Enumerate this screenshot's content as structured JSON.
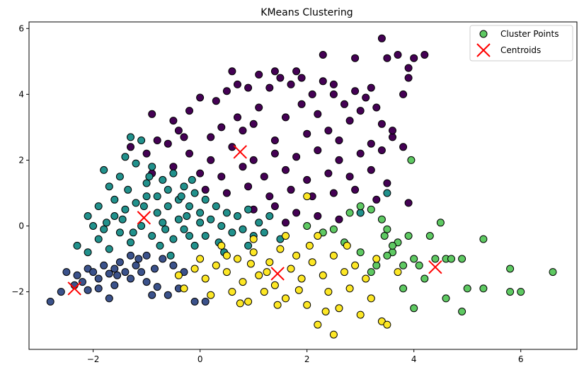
{
  "chart_data": {
    "type": "scatter",
    "title": "KMeans Clustering",
    "xlabel": "",
    "ylabel": "",
    "xlim": [
      -3.2,
      7.05
    ],
    "ylim": [
      -3.75,
      6.2
    ],
    "x_ticks": [
      -2,
      0,
      2,
      4,
      6
    ],
    "y_ticks": [
      -2,
      0,
      2,
      4,
      6
    ],
    "grid": false,
    "legend": {
      "placement": "top-right",
      "entries": [
        {
          "label": "Cluster Points",
          "marker": "circle",
          "color": "#5ec962"
        },
        {
          "label": "Centroids",
          "marker": "x",
          "color": "#ff0000"
        }
      ]
    },
    "cluster_colors": [
      "#440154",
      "#3b528b",
      "#21918c",
      "#5ec962",
      "#fde725"
    ],
    "series": [
      {
        "cluster": 0,
        "color": "#440154",
        "points": [
          [
            -0.9,
            3.4
          ],
          [
            -0.5,
            3.2
          ],
          [
            -0.2,
            3.5
          ],
          [
            0.0,
            3.9
          ],
          [
            0.3,
            3.8
          ],
          [
            0.5,
            4.1
          ],
          [
            0.7,
            4.3
          ],
          [
            0.9,
            4.2
          ],
          [
            1.1,
            4.6
          ],
          [
            1.3,
            4.2
          ],
          [
            1.5,
            4.5
          ],
          [
            1.7,
            4.3
          ],
          [
            1.9,
            4.5
          ],
          [
            2.1,
            4.0
          ],
          [
            2.3,
            4.4
          ],
          [
            2.5,
            4.0
          ],
          [
            2.7,
            3.7
          ],
          [
            2.9,
            4.1
          ],
          [
            3.1,
            3.9
          ],
          [
            3.3,
            3.6
          ],
          [
            2.3,
            5.2
          ],
          [
            2.9,
            5.1
          ],
          [
            3.4,
            5.7
          ],
          [
            3.5,
            5.1
          ],
          [
            3.7,
            5.2
          ],
          [
            3.9,
            4.8
          ],
          [
            4.2,
            5.2
          ],
          [
            3.8,
            4.0
          ],
          [
            4.0,
            5.1
          ],
          [
            0.6,
            4.7
          ],
          [
            1.4,
            4.7
          ],
          [
            1.8,
            4.7
          ],
          [
            0.4,
            3.0
          ],
          [
            1.0,
            3.1
          ],
          [
            1.6,
            3.3
          ],
          [
            2.2,
            3.4
          ],
          [
            2.8,
            3.2
          ],
          [
            3.4,
            3.1
          ],
          [
            -0.8,
            2.6
          ],
          [
            -0.4,
            2.9
          ],
          [
            0.2,
            2.7
          ],
          [
            0.8,
            2.9
          ],
          [
            1.4,
            2.6
          ],
          [
            2.0,
            2.8
          ],
          [
            2.6,
            2.6
          ],
          [
            3.2,
            2.5
          ],
          [
            3.6,
            2.7
          ],
          [
            -1.3,
            2.4
          ],
          [
            -1.0,
            2.2
          ],
          [
            -0.6,
            2.5
          ],
          [
            -0.2,
            2.2
          ],
          [
            0.2,
            2.0
          ],
          [
            0.6,
            2.4
          ],
          [
            1.0,
            2.0
          ],
          [
            1.4,
            2.2
          ],
          [
            1.8,
            2.1
          ],
          [
            2.2,
            2.3
          ],
          [
            2.6,
            2.0
          ],
          [
            3.0,
            2.2
          ],
          [
            3.4,
            2.3
          ],
          [
            3.8,
            2.4
          ],
          [
            -0.9,
            1.6
          ],
          [
            -0.5,
            1.8
          ],
          [
            0.0,
            1.6
          ],
          [
            0.4,
            1.5
          ],
          [
            0.8,
            1.8
          ],
          [
            1.2,
            1.5
          ],
          [
            1.6,
            1.7
          ],
          [
            2.0,
            1.4
          ],
          [
            2.4,
            1.6
          ],
          [
            2.8,
            1.5
          ],
          [
            3.2,
            1.7
          ],
          [
            3.5,
            1.3
          ],
          [
            0.1,
            1.1
          ],
          [
            0.5,
            1.0
          ],
          [
            0.9,
            1.2
          ],
          [
            1.3,
            0.9
          ],
          [
            1.7,
            1.1
          ],
          [
            2.1,
            0.9
          ],
          [
            2.5,
            1.0
          ],
          [
            2.9,
            1.1
          ],
          [
            3.3,
            0.8
          ],
          [
            1.0,
            0.5
          ],
          [
            1.4,
            0.6
          ],
          [
            1.8,
            0.4
          ],
          [
            2.2,
            0.3
          ],
          [
            2.6,
            0.2
          ],
          [
            1.6,
            0.1
          ],
          [
            3.0,
            0.4
          ],
          [
            3.9,
            0.7
          ],
          [
            3.6,
            2.9
          ],
          [
            3.9,
            4.5
          ],
          [
            3.0,
            3.5
          ],
          [
            2.4,
            2.9
          ],
          [
            1.1,
            3.6
          ],
          [
            -0.3,
            2.7
          ],
          [
            0.7,
            3.3
          ],
          [
            1.9,
            3.7
          ],
          [
            2.5,
            4.3
          ],
          [
            3.2,
            4.2
          ]
        ]
      },
      {
        "cluster": 1,
        "color": "#3b528b",
        "points": [
          [
            -2.8,
            -2.3
          ],
          [
            -2.6,
            -2.0
          ],
          [
            -2.5,
            -1.4
          ],
          [
            -2.35,
            -1.8
          ],
          [
            -2.3,
            -1.5
          ],
          [
            -2.2,
            -1.7
          ],
          [
            -2.1,
            -1.3
          ],
          [
            -2.0,
            -1.4
          ],
          [
            -1.9,
            -1.6
          ],
          [
            -1.8,
            -1.2
          ],
          [
            -1.7,
            -1.45
          ],
          [
            -1.6,
            -1.3
          ],
          [
            -1.5,
            -1.1
          ],
          [
            -1.4,
            -1.4
          ],
          [
            -1.3,
            -1.6
          ],
          [
            -1.2,
            -1.2
          ],
          [
            -1.1,
            -1.4
          ],
          [
            -1.0,
            -1.7
          ],
          [
            -0.9,
            -2.1
          ],
          [
            -0.8,
            -1.85
          ],
          [
            -0.6,
            -2.1
          ],
          [
            -0.4,
            -1.9
          ],
          [
            -1.7,
            -2.2
          ],
          [
            -1.9,
            -1.9
          ],
          [
            -2.1,
            -1.95
          ],
          [
            -1.6,
            -1.8
          ],
          [
            -1.3,
            -0.9
          ],
          [
            -1.0,
            -0.9
          ],
          [
            -0.7,
            -1.0
          ],
          [
            -0.5,
            -1.2
          ],
          [
            -0.3,
            -1.4
          ],
          [
            -0.1,
            -2.3
          ],
          [
            0.1,
            -2.3
          ],
          [
            -1.55,
            -1.5
          ],
          [
            -1.15,
            -1.0
          ],
          [
            -0.85,
            -1.3
          ]
        ]
      },
      {
        "cluster": 2,
        "color": "#21918c",
        "points": [
          [
            -2.1,
            0.3
          ],
          [
            -1.9,
            0.6
          ],
          [
            -1.8,
            1.7
          ],
          [
            -1.7,
            1.2
          ],
          [
            -1.6,
            0.8
          ],
          [
            -1.5,
            1.5
          ],
          [
            -1.4,
            2.1
          ],
          [
            -1.3,
            2.7
          ],
          [
            -1.2,
            1.9
          ],
          [
            -1.1,
            2.6
          ],
          [
            -1.0,
            1.3
          ],
          [
            -0.9,
            1.8
          ],
          [
            -0.8,
            0.9
          ],
          [
            -0.7,
            1.4
          ],
          [
            -0.6,
            1.1
          ],
          [
            -0.5,
            1.6
          ],
          [
            -0.4,
            0.8
          ],
          [
            -0.3,
            1.2
          ],
          [
            -0.2,
            0.6
          ],
          [
            -0.1,
            1.0
          ],
          [
            0.0,
            0.4
          ],
          [
            0.1,
            0.8
          ],
          [
            0.2,
            0.2
          ],
          [
            0.3,
            0.6
          ],
          [
            0.4,
            0.0
          ],
          [
            0.5,
            0.4
          ],
          [
            0.6,
            -0.2
          ],
          [
            0.7,
            0.3
          ],
          [
            0.8,
            -0.1
          ],
          [
            0.9,
            0.5
          ],
          [
            1.0,
            -0.3
          ],
          [
            1.1,
            0.1
          ],
          [
            1.2,
            -0.2
          ],
          [
            1.3,
            0.3
          ],
          [
            -2.3,
            -0.6
          ],
          [
            -2.1,
            -0.8
          ],
          [
            -1.9,
            -0.4
          ],
          [
            -1.7,
            -0.7
          ],
          [
            -1.5,
            -0.2
          ],
          [
            -1.3,
            -0.5
          ],
          [
            -1.1,
            0.0
          ],
          [
            -0.9,
            -0.3
          ],
          [
            -0.7,
            0.1
          ],
          [
            -0.5,
            -0.4
          ],
          [
            -0.3,
            -0.1
          ],
          [
            -0.1,
            -0.6
          ],
          [
            0.1,
            -0.3
          ],
          [
            -2.0,
            0.0
          ],
          [
            -1.8,
            -0.1
          ],
          [
            -1.6,
            0.3
          ],
          [
            -1.4,
            0.5
          ],
          [
            -1.2,
            0.7
          ],
          [
            -1.0,
            0.9
          ],
          [
            -0.8,
            0.4
          ],
          [
            -0.6,
            0.6
          ],
          [
            -0.4,
            0.2
          ],
          [
            -0.2,
            -0.3
          ],
          [
            0.0,
            0.1
          ],
          [
            -1.45,
            0.2
          ],
          [
            -1.05,
            0.6
          ],
          [
            -0.65,
            -0.1
          ],
          [
            -0.25,
            0.3
          ],
          [
            0.35,
            -0.5
          ],
          [
            -0.75,
            -0.6
          ],
          [
            -1.25,
            -0.2
          ],
          [
            -0.15,
            1.4
          ],
          [
            -1.35,
            1.1
          ],
          [
            -0.95,
            1.5
          ],
          [
            1.5,
            -0.4
          ],
          [
            0.9,
            -0.6
          ],
          [
            0.45,
            -0.8
          ],
          [
            3.5,
            1.0
          ],
          [
            3.0,
            0.4
          ],
          [
            -0.55,
            -0.9
          ],
          [
            -1.75,
            0.1
          ],
          [
            -0.35,
            0.9
          ]
        ]
      },
      {
        "cluster": 3,
        "color": "#5ec962",
        "points": [
          [
            2.0,
            0.0
          ],
          [
            2.5,
            -0.1
          ],
          [
            2.8,
            0.4
          ],
          [
            3.0,
            0.6
          ],
          [
            3.2,
            0.5
          ],
          [
            3.4,
            0.2
          ],
          [
            3.5,
            -0.1
          ],
          [
            3.6,
            -0.8
          ],
          [
            3.7,
            -0.5
          ],
          [
            3.8,
            -1.2
          ],
          [
            3.9,
            -0.3
          ],
          [
            3.95,
            2.0
          ],
          [
            4.0,
            -1.0
          ],
          [
            4.2,
            -1.6
          ],
          [
            4.3,
            -0.3
          ],
          [
            4.4,
            -1.0
          ],
          [
            4.5,
            0.1
          ],
          [
            4.6,
            -1.0
          ],
          [
            4.7,
            -1.0
          ],
          [
            4.9,
            -1.0
          ],
          [
            4.9,
            -2.6
          ],
          [
            5.0,
            -1.9
          ],
          [
            5.3,
            -0.4
          ],
          [
            5.3,
            -1.9
          ],
          [
            5.8,
            -1.3
          ],
          [
            5.8,
            -2.0
          ],
          [
            6.0,
            -2.0
          ],
          [
            6.6,
            -1.4
          ],
          [
            3.2,
            -1.4
          ],
          [
            3.8,
            -1.9
          ],
          [
            4.6,
            -2.2
          ],
          [
            3.0,
            -0.8
          ],
          [
            2.3,
            -0.2
          ],
          [
            3.5,
            -0.9
          ],
          [
            3.6,
            -0.6
          ],
          [
            4.1,
            -1.2
          ],
          [
            3.3,
            -1.2
          ],
          [
            2.7,
            -0.5
          ],
          [
            4.0,
            -2.5
          ],
          [
            3.45,
            -0.3
          ]
        ]
      },
      {
        "cluster": 4,
        "color": "#fde725",
        "points": [
          [
            -0.4,
            -1.5
          ],
          [
            -0.3,
            -1.9
          ],
          [
            -0.1,
            -1.3
          ],
          [
            0.1,
            -1.6
          ],
          [
            0.2,
            -2.1
          ],
          [
            0.3,
            -1.2
          ],
          [
            0.5,
            -1.4
          ],
          [
            0.6,
            -2.0
          ],
          [
            0.7,
            -1.0
          ],
          [
            0.8,
            -1.7
          ],
          [
            0.9,
            -2.3
          ],
          [
            1.0,
            -0.8
          ],
          [
            1.1,
            -1.5
          ],
          [
            1.2,
            -2.0
          ],
          [
            1.3,
            -1.1
          ],
          [
            1.4,
            -1.8
          ],
          [
            1.5,
            -0.7
          ],
          [
            1.6,
            -2.2
          ],
          [
            1.7,
            -1.3
          ],
          [
            1.8,
            -0.9
          ],
          [
            1.9,
            -1.6
          ],
          [
            2.0,
            -2.4
          ],
          [
            2.1,
            -1.1
          ],
          [
            2.2,
            -3.0
          ],
          [
            2.3,
            -1.5
          ],
          [
            2.4,
            -2.0
          ],
          [
            2.5,
            -0.9
          ],
          [
            2.6,
            -2.5
          ],
          [
            2.7,
            -1.4
          ],
          [
            2.8,
            -1.9
          ],
          [
            2.9,
            -1.2
          ],
          [
            3.0,
            -2.7
          ],
          [
            3.1,
            -1.6
          ],
          [
            3.2,
            -2.2
          ],
          [
            3.3,
            -1.0
          ],
          [
            3.4,
            -2.9
          ],
          [
            3.5,
            -3.0
          ],
          [
            2.5,
            -3.3
          ],
          [
            2.0,
            0.9
          ],
          [
            2.2,
            -0.3
          ],
          [
            1.0,
            -0.4
          ],
          [
            0.4,
            -0.6
          ],
          [
            1.6,
            -0.3
          ],
          [
            0.0,
            -1.0
          ],
          [
            0.5,
            -0.9
          ],
          [
            1.25,
            -1.4
          ],
          [
            1.85,
            -1.95
          ],
          [
            2.35,
            -2.6
          ],
          [
            2.75,
            -0.6
          ],
          [
            1.45,
            -2.4
          ],
          [
            0.75,
            -2.35
          ],
          [
            3.7,
            -1.4
          ],
          [
            0.95,
            -1.15
          ],
          [
            2.05,
            -0.6
          ]
        ]
      }
    ],
    "centroids": [
      [
        0.75,
        2.25
      ],
      [
        -2.35,
        -1.9
      ],
      [
        -1.05,
        0.25
      ],
      [
        4.4,
        -1.25
      ],
      [
        1.45,
        -1.45
      ]
    ]
  }
}
